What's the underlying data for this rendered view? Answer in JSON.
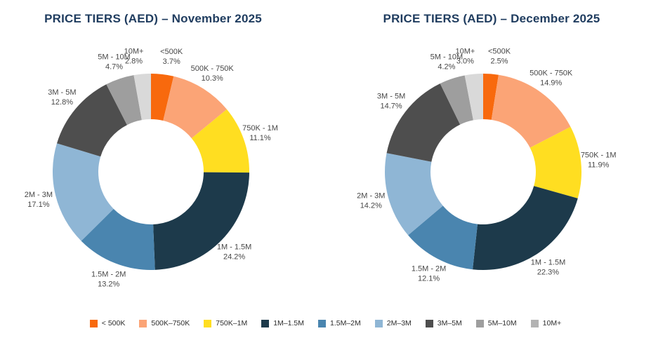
{
  "chart_data": [
    {
      "type": "pie",
      "subtype": "donut",
      "title": "PRICE TIERS (AED) – November 2025",
      "categories": [
        "<500K",
        "500K - 750K",
        "750K - 1M",
        "1M - 1.5M",
        "1.5M - 2M",
        "2M - 3M",
        "3M - 5M",
        "5M - 10M",
        "10M+"
      ],
      "values": [
        3.7,
        10.3,
        11.1,
        24.2,
        13.2,
        17.1,
        12.8,
        4.7,
        2.8
      ],
      "unit": "%",
      "start_angle": "12 o'clock, clockwise",
      "labels": "category name and percent shown outside each slice"
    },
    {
      "type": "pie",
      "subtype": "donut",
      "title": "PRICE TIERS (AED) – December 2025",
      "categories": [
        "<500K",
        "500K - 750K",
        "750K - 1M",
        "1M - 1.5M",
        "1.5M - 2M",
        "2M - 3M",
        "3M - 5M",
        "5M - 10M",
        "10M+"
      ],
      "values": [
        2.5,
        14.9,
        11.9,
        22.3,
        12.1,
        14.2,
        14.7,
        4.2,
        3.0
      ],
      "unit": "%",
      "start_angle": "12 o'clock, clockwise",
      "labels": "category name and percent shown outside each slice"
    }
  ],
  "series_colors": [
    "#F8690D",
    "#FBA476",
    "#FFDE21",
    "#1D3A4B",
    "#4A85AF",
    "#8FB6D5",
    "#4E4E4E",
    "#9E9E9E",
    "#D9D9D9"
  ],
  "legend": {
    "items": [
      {
        "label": "< 500K",
        "color": "#F8690D"
      },
      {
        "label": "500K–750K",
        "color": "#FBA476"
      },
      {
        "label": "750K–1M",
        "color": "#FFDE21"
      },
      {
        "label": "1M–1.5M",
        "color": "#1D3A4B"
      },
      {
        "label": "1.5M–2M",
        "color": "#4A85AF"
      },
      {
        "label": "2M–3M",
        "color": "#8FB6D5"
      },
      {
        "label": "3M–5M",
        "color": "#4E4E4E"
      },
      {
        "label": "5M–10M",
        "color": "#9E9E9E"
      },
      {
        "label": "10M+",
        "color": "#B3B3B3"
      }
    ]
  },
  "styles": {
    "background": "#FFFFFF",
    "title_color": "#1F3C5F",
    "label_color": "#474747",
    "legend_text_color": "#2E2E2E"
  }
}
